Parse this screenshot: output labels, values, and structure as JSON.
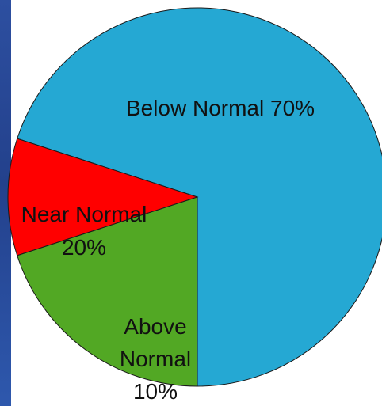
{
  "chart_data": {
    "type": "pie",
    "slices": [
      {
        "label": "Below Normal",
        "value": 70,
        "value_label": "70%",
        "color": "#25a8d3"
      },
      {
        "label": "Above Normal",
        "value": 10,
        "value_label": "10%",
        "color": "#ff0000"
      },
      {
        "label": "Near Normal",
        "value": 20,
        "value_label": "20%",
        "color": "#52a824"
      }
    ],
    "label_texts": {
      "below_normal": "Below Normal 70%",
      "near_normal_line1": "Near Normal",
      "near_normal_line2": "20%",
      "above_normal_line1": "Above",
      "above_normal_line2": "Normal",
      "above_normal_line3": "10%"
    }
  },
  "colors": {
    "sidebar": "#2d4fa0",
    "background": "#ffffff"
  }
}
